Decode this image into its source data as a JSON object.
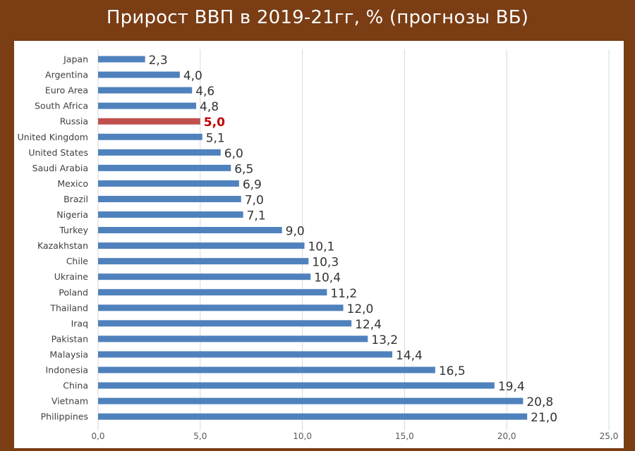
{
  "header": {
    "title": "Прирост ВВП в 2019-21гг, % (прогнозы ВБ)"
  },
  "chart_data": {
    "type": "bar",
    "orientation": "horizontal",
    "title": "Прирост ВВП в 2019-21гг, % (прогнозы ВБ)",
    "xlim": [
      0,
      25
    ],
    "x_ticks": [
      "0,0",
      "5,0",
      "10,0",
      "15,0",
      "20,0",
      "25,0"
    ],
    "grid": "vertical",
    "legend": "none",
    "categories": [
      "Japan",
      "Argentina",
      "Euro Area",
      "South Africa",
      "Russia",
      "United Kingdom",
      "United States",
      "Saudi Arabia",
      "Mexico",
      "Brazil",
      "Nigeria",
      "Turkey",
      "Kazakhstan",
      "Chile",
      "Ukraine",
      "Poland",
      "Thailand",
      "Iraq",
      "Pakistan",
      "Malaysia",
      "Indonesia",
      "China",
      "Vietnam",
      "Philippines"
    ],
    "values": [
      2.3,
      4.0,
      4.6,
      4.8,
      5.0,
      5.1,
      6.0,
      6.5,
      6.9,
      7.0,
      7.1,
      9.0,
      10.1,
      10.3,
      10.4,
      11.2,
      12.0,
      12.4,
      13.2,
      14.4,
      16.5,
      19.4,
      20.8,
      21.0
    ],
    "value_labels": [
      "2,3",
      "4,0",
      "4,6",
      "4,8",
      "5,0",
      "5,1",
      "6,0",
      "6,5",
      "6,9",
      "7,0",
      "7,1",
      "9,0",
      "10,1",
      "10,3",
      "10,4",
      "11,2",
      "12,0",
      "12,4",
      "13,2",
      "14,4",
      "16,5",
      "19,4",
      "20,8",
      "21,0"
    ],
    "highlight": "Russia",
    "colors": {
      "bar": "#4f81bd",
      "highlight_bar": "#c0504d",
      "highlight_label": "#c00000",
      "label": "#333333",
      "grid": "#d9d9d9",
      "header_bg": "#7a3d14"
    }
  }
}
